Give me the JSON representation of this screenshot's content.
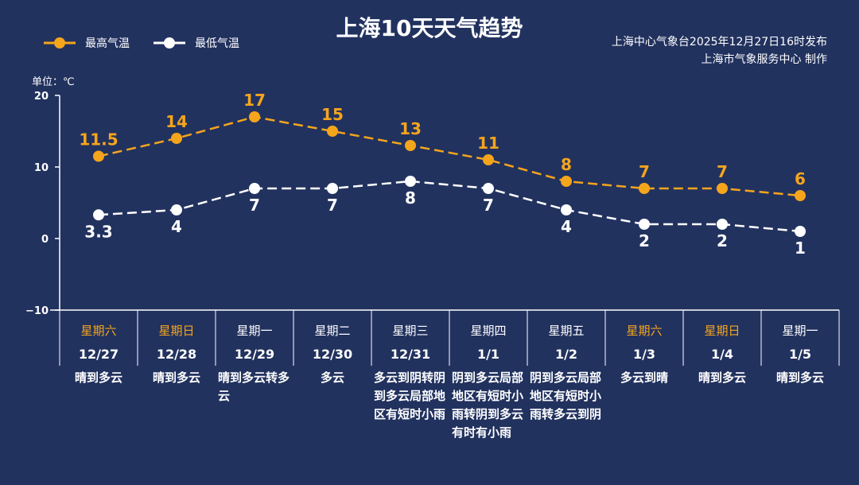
{
  "title": "上海10天天气趋势",
  "issuer": {
    "line1": "上海中心气象台2025年12月27日16时发布",
    "line2": "上海市气象服务中心  制作"
  },
  "colors": {
    "background": "#22325f",
    "high": "#f5a51c",
    "low": "#ffffff",
    "weekend_label": "#f5a51c"
  },
  "chart_data": {
    "type": "line",
    "title": "上海10天天气趋势",
    "unit_label": "单位：℃",
    "ylim": [
      -10,
      20
    ],
    "yticks": [
      20,
      10,
      0,
      -10
    ],
    "grid": false,
    "legend_position": "top-left",
    "categories": [
      "12/27",
      "12/28",
      "12/29",
      "12/30",
      "12/31",
      "1/1",
      "1/2",
      "1/3",
      "1/4",
      "1/5"
    ],
    "weekdays": [
      "星期六",
      "星期日",
      "星期一",
      "星期二",
      "星期三",
      "星期四",
      "星期五",
      "星期六",
      "星期日",
      "星期一"
    ],
    "weekend": [
      true,
      true,
      false,
      false,
      false,
      false,
      false,
      true,
      true,
      false
    ],
    "weather": [
      "晴到多云",
      "晴到多云",
      "晴到多云转多云",
      "多云",
      "多云到阴转阴到多云局部地区有短时小雨",
      "阴到多云局部地区有短时小雨转阴到多云有时有小雨",
      "阴到多云局部地区有短时小雨转多云到阴",
      "多云到晴",
      "晴到多云",
      "晴到多云"
    ],
    "series": [
      {
        "name": "最高气温",
        "color": "#f5a51c",
        "values": [
          11.5,
          14,
          17,
          15,
          13,
          11,
          8,
          7,
          7,
          6
        ]
      },
      {
        "name": "最低气温",
        "color": "#ffffff",
        "values": [
          3.3,
          4,
          7,
          7,
          8,
          7,
          4,
          2,
          2,
          1
        ]
      }
    ]
  }
}
